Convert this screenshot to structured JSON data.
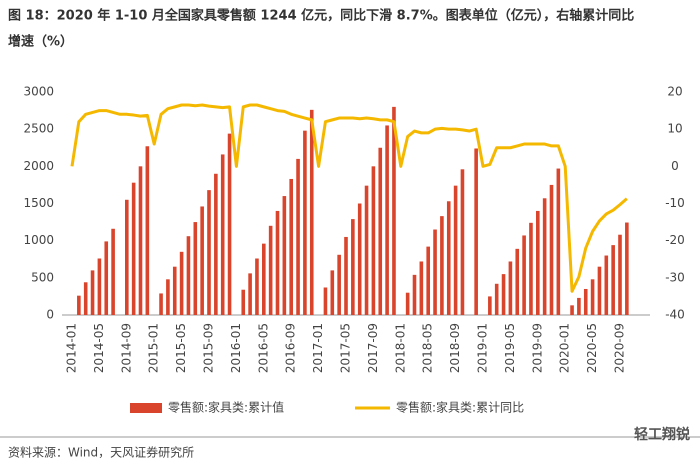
{
  "chart_data": {
    "type": "bar-line",
    "title": "图 18：2020 年 1-10 月全国家具零售额 1244 亿元，同比下滑 8.7%。图表单位（亿元），右轴累计同比",
    "subtitle": "增速（%）",
    "source": "资料来源：Wind，天风证券研究所",
    "watermark": "轻工翔锐",
    "categories": [
      "2014-01",
      null,
      null,
      null,
      "2014-05",
      null,
      null,
      null,
      "2014-09",
      null,
      null,
      null,
      "2015-01",
      null,
      null,
      null,
      "2015-05",
      null,
      null,
      null,
      "2015-09",
      null,
      null,
      null,
      "2016-01",
      null,
      null,
      null,
      "2016-05",
      null,
      null,
      null,
      "2016-09",
      null,
      null,
      null,
      "2017-01",
      null,
      null,
      null,
      "2017-05",
      null,
      null,
      null,
      "2017-09",
      null,
      null,
      null,
      "2018-01",
      null,
      null,
      null,
      "2018-05",
      null,
      null,
      null,
      "2018-09",
      null,
      null,
      null,
      "2019-01",
      null,
      null,
      null,
      "2019-05",
      null,
      null,
      null,
      "2019-09",
      null,
      null,
      null,
      "2020-01",
      null,
      null,
      null,
      "2020-05",
      null,
      null,
      null,
      "2020-09",
      null
    ],
    "series": [
      {
        "name": "零售额:家具类:累计值",
        "color": "#d9442c",
        "values": [
          null,
          260,
          440,
          600,
          760,
          990,
          1160,
          null,
          1550,
          1780,
          2000,
          2270,
          null,
          290,
          480,
          650,
          850,
          1060,
          1250,
          1460,
          1680,
          1900,
          2160,
          2440,
          null,
          340,
          560,
          760,
          960,
          1200,
          1400,
          1600,
          1830,
          2100,
          2480,
          2760,
          null,
          370,
          600,
          810,
          1050,
          1290,
          1500,
          1740,
          2000,
          2250,
          2550,
          2800,
          null,
          300,
          540,
          720,
          920,
          1150,
          1330,
          1530,
          1740,
          1960,
          null,
          2240,
          null,
          250,
          420,
          550,
          720,
          890,
          1070,
          1240,
          1400,
          1570,
          1750,
          1970,
          null,
          130,
          230,
          350,
          480,
          650,
          800,
          940,
          1080,
          1244
        ]
      },
      {
        "name": "零售额:家具类:累计同比",
        "color": "#f5b800",
        "axis": "y2",
        "values": [
          0,
          12,
          14,
          14.5,
          15,
          15,
          14.5,
          14,
          14,
          13.8,
          13.5,
          13.7,
          6,
          14,
          15.5,
          16,
          16.5,
          16.5,
          16.3,
          16.5,
          16.2,
          16,
          15.8,
          16,
          0,
          16,
          16.5,
          16.5,
          16,
          15.5,
          15,
          14.8,
          14,
          13.5,
          13,
          12.5,
          0,
          12,
          12.5,
          13,
          13,
          13,
          12.8,
          13,
          12.8,
          12.5,
          12.5,
          12,
          0,
          8,
          9.5,
          9,
          9,
          10,
          10.2,
          10,
          10,
          9.8,
          9.5,
          10,
          0,
          0.5,
          5,
          5,
          5,
          5.5,
          6,
          6,
          6,
          6,
          5.5,
          5.5,
          0,
          -33.6,
          -29.7,
          -22,
          -17.5,
          -14.7,
          -12.8,
          -11.8,
          -10.3,
          -8.7
        ]
      }
    ],
    "ylim": [
      0,
      3000
    ],
    "yticks": [
      0,
      500,
      1000,
      1500,
      2000,
      2500,
      3000
    ],
    "y2lim": [
      -40,
      20
    ],
    "y2ticks": [
      -40,
      -30,
      -20,
      -10,
      0,
      10,
      20
    ],
    "legend": "bottom"
  }
}
